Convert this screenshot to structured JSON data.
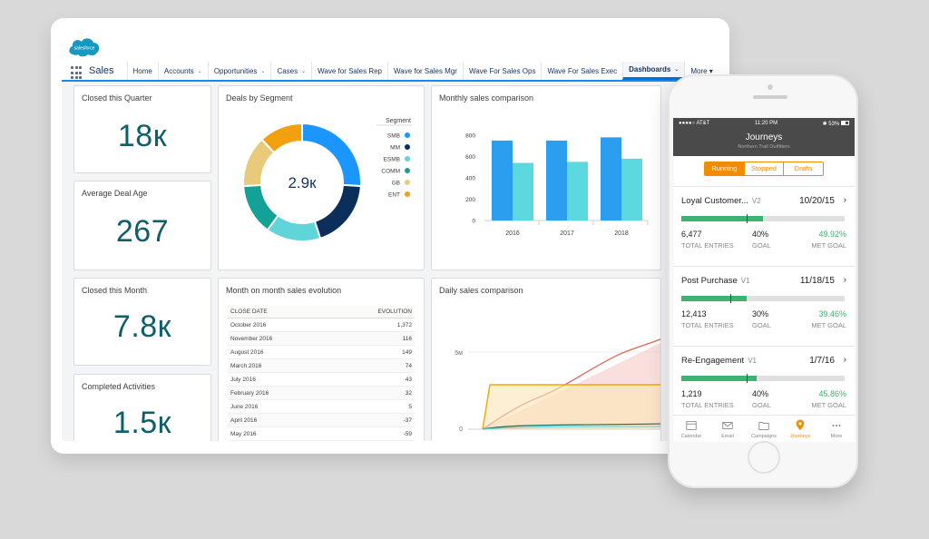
{
  "colors": {
    "teal": "#0e5f6a",
    "blue": "#1589ee",
    "orange": "#f08c00",
    "green": "#3cb371"
  },
  "brand": {
    "logo_text": "salesforce"
  },
  "nav": {
    "app_name": "Sales",
    "items": [
      {
        "label": "Home",
        "chevron": false,
        "active": false
      },
      {
        "label": "Accounts",
        "chevron": true,
        "active": false
      },
      {
        "label": "Opportunities",
        "chevron": true,
        "active": false
      },
      {
        "label": "Cases",
        "chevron": true,
        "active": false
      },
      {
        "label": "Wave for Sales Rep",
        "chevron": false,
        "active": false
      },
      {
        "label": "Wave for Sales Mgr",
        "chevron": false,
        "active": false
      },
      {
        "label": "Wave For Sales Ops",
        "chevron": false,
        "active": false
      },
      {
        "label": "Wave For Sales Exec",
        "chevron": false,
        "active": false
      },
      {
        "label": "Dashboards",
        "chevron": true,
        "active": true
      }
    ],
    "more_label": "More ▾"
  },
  "kpis": {
    "closed_quarter": {
      "title": "Closed this Quarter",
      "value": "18к"
    },
    "avg_deal_age": {
      "title": "Average Deal Age",
      "value": "267"
    },
    "closed_month": {
      "title": "Closed this Month",
      "value": "7.8к"
    },
    "completed_activities": {
      "title": "Completed Activities",
      "value": "1.5к"
    }
  },
  "donut": {
    "title": "Deals by Segment",
    "center": "2.9к",
    "legend_title": "Segment",
    "segments": [
      {
        "label": "SMB",
        "value": 26,
        "color": "#1b96ff"
      },
      {
        "label": "MM",
        "value": 19,
        "color": "#0b2f5a"
      },
      {
        "label": "ESMB",
        "value": 15,
        "color": "#5fd4d9"
      },
      {
        "label": "COMM",
        "value": 14,
        "color": "#14a198"
      },
      {
        "label": "GB",
        "value": 14,
        "color": "#e9c97a"
      },
      {
        "label": "ENT",
        "value": 12,
        "color": "#f2a00e"
      }
    ]
  },
  "monthly": {
    "title": "Monthly sales comparison",
    "chart_data": {
      "type": "bar",
      "categories": [
        "2016",
        "2017",
        "2018"
      ],
      "series": [
        {
          "values": [
            750,
            750,
            780
          ],
          "color": "#2b9ef0"
        },
        {
          "values": [
            540,
            550,
            580
          ],
          "color": "#5cd8df"
        }
      ],
      "ylim": [
        0,
        800
      ],
      "yticks": [
        "800",
        "600",
        "400",
        "200",
        "0"
      ]
    }
  },
  "evolution": {
    "title": "Month on month sales evolution",
    "columns": [
      "CLOSE DATE",
      "EVOLUTION"
    ],
    "rows": [
      [
        "October 2016",
        "1,372"
      ],
      [
        "November 2016",
        "116"
      ],
      [
        "August 2016",
        "149"
      ],
      [
        "March 2016",
        "74"
      ],
      [
        "July 2016",
        "43"
      ],
      [
        "February 2016",
        "32"
      ],
      [
        "June 2016",
        "5"
      ],
      [
        "April 2016",
        "-37"
      ],
      [
        "May 2016",
        "-59"
      ]
    ]
  },
  "daily": {
    "title": "Daily sales comparison",
    "yticks": [
      "5м",
      "0"
    ]
  },
  "phone": {
    "status": {
      "carrier": "●●●●○ AT&T",
      "time": "11:20 PM",
      "battery": "✱ 53%"
    },
    "title": "Journeys",
    "subtitle": "Northern Trail Outfitters",
    "segments": [
      "Running",
      "Stopped",
      "Drafts"
    ],
    "journeys": [
      {
        "name": "Loyal Customer...",
        "version": "V2",
        "date": "10/20/15",
        "entries": "6,477",
        "entries_label": "TOTAL ENTRIES",
        "goal": "40%",
        "goal_label": "GOAL",
        "met": "49.92%",
        "met_label": "MET GOAL",
        "progress": 0.5,
        "goal_frac": 0.4
      },
      {
        "name": "Post Purchase",
        "version": "V1",
        "date": "11/18/15",
        "entries": "12,413",
        "entries_label": "TOTAL ENTRIES",
        "goal": "30%",
        "goal_label": "GOAL",
        "met": "39.46%",
        "met_label": "MET GOAL",
        "progress": 0.4,
        "goal_frac": 0.3
      },
      {
        "name": "Re-Engagement",
        "version": "V1",
        "date": "1/7/16",
        "entries": "1,219",
        "entries_label": "TOTAL ENTRIES",
        "goal": "40%",
        "goal_label": "GOAL",
        "met": "45.86%",
        "met_label": "MET GOAL",
        "progress": 0.46,
        "goal_frac": 0.4
      }
    ],
    "tabs": [
      {
        "label": "Calendar",
        "icon": "calendar-icon",
        "active": false
      },
      {
        "label": "Email",
        "icon": "email-icon",
        "active": false
      },
      {
        "label": "Campaigns",
        "icon": "folder-icon",
        "active": false
      },
      {
        "label": "Journeys",
        "icon": "journeys-pin-icon",
        "active": true
      },
      {
        "label": "More",
        "icon": "more-dots-icon",
        "active": false
      }
    ]
  }
}
